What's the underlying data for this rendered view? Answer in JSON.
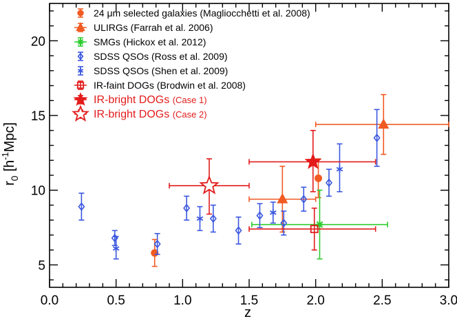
{
  "chart_data": {
    "type": "scatter",
    "title": "",
    "xlabel": "z",
    "ylabel_main": "r",
    "ylabel_sub": "0",
    "ylabel_unit": "[h",
    "ylabel_sup": "-1",
    "ylabel_unit2": "Mpc]",
    "xlim": [
      0.0,
      3.0
    ],
    "ylim": [
      3.5,
      22.5
    ],
    "xticks": [
      0.0,
      0.5,
      1.0,
      1.5,
      2.0,
      2.5,
      3.0
    ],
    "xtick_labels": [
      "0.0",
      "0.5",
      "1.0",
      "1.5",
      "2.0",
      "2.5",
      "3.0"
    ],
    "yticks": [
      5,
      10,
      15,
      20
    ],
    "ytick_labels": [
      "5",
      "10",
      "15",
      "20"
    ],
    "legend_position": "top-left",
    "series": [
      {
        "name": "24 μm selected galaxies",
        "ref": "(Magliocchetti et al. 2008)",
        "color": "#f15a22",
        "marker": "circle",
        "points": [
          {
            "x": 0.79,
            "y": 5.8,
            "ylo": 4.9,
            "yhi": 6.7
          },
          {
            "x": 2.02,
            "y": 10.8,
            "ylo": 9.5,
            "yhi": 12.1
          }
        ]
      },
      {
        "name": "ULIRGs",
        "ref": "(Farrah et al. 2006)",
        "color": "#f15a22",
        "marker": "triangle",
        "points": [
          {
            "x": 1.75,
            "y": 9.4,
            "xlo": 1.5,
            "xhi": 2.0,
            "ylo": 7.2,
            "yhi": 11.6
          },
          {
            "x": 2.51,
            "y": 14.4,
            "xlo": 2.0,
            "xhi": 3.0,
            "ylo": 12.4,
            "yhi": 16.4
          }
        ]
      },
      {
        "name": "SMGs",
        "ref": "(Hickox et al. 2012)",
        "color": "#2ecc2e",
        "marker": "asterisk",
        "points": [
          {
            "x": 2.03,
            "y": 7.7,
            "xlo": 1.52,
            "xhi": 2.54,
            "ylo": 5.4,
            "yhi": 10.0
          }
        ]
      },
      {
        "name": "SDSS QSOs",
        "ref": "(Ross et al. 2009)",
        "color": "#3b57e0",
        "marker": "diamond",
        "points": [
          {
            "x": 0.24,
            "y": 8.9,
            "ylo": 8.0,
            "yhi": 9.8
          },
          {
            "x": 0.49,
            "y": 6.8,
            "ylo": 6.3,
            "yhi": 7.3
          },
          {
            "x": 0.81,
            "y": 6.4,
            "ylo": 5.7,
            "yhi": 7.1
          },
          {
            "x": 1.03,
            "y": 8.8,
            "ylo": 8.0,
            "yhi": 9.6
          },
          {
            "x": 1.23,
            "y": 8.1,
            "ylo": 7.2,
            "yhi": 9.0
          },
          {
            "x": 1.42,
            "y": 7.3,
            "ylo": 6.4,
            "yhi": 8.2
          },
          {
            "x": 1.58,
            "y": 8.3,
            "ylo": 7.5,
            "yhi": 9.1
          },
          {
            "x": 1.76,
            "y": 7.8,
            "ylo": 7.0,
            "yhi": 8.6
          },
          {
            "x": 1.91,
            "y": 9.4,
            "ylo": 8.6,
            "yhi": 10.2
          },
          {
            "x": 2.1,
            "y": 10.5,
            "ylo": 9.6,
            "yhi": 11.4
          },
          {
            "x": 2.46,
            "y": 13.5,
            "ylo": 11.6,
            "yhi": 15.4
          }
        ]
      },
      {
        "name": "SDSS QSOs",
        "ref": "(Shen et al. 2009)",
        "color": "#3b57e0",
        "marker": "star",
        "points": [
          {
            "x": 0.5,
            "y": 6.1,
            "ylo": 5.4,
            "yhi": 6.9
          },
          {
            "x": 1.13,
            "y": 8.1,
            "ylo": 7.3,
            "yhi": 8.9
          },
          {
            "x": 1.68,
            "y": 8.5,
            "ylo": 7.8,
            "yhi": 9.2
          },
          {
            "x": 2.18,
            "y": 11.4,
            "ylo": 9.9,
            "yhi": 13.1
          }
        ]
      },
      {
        "name": "IR-faint DOGs",
        "ref": "(Brodwin et al. 2008)",
        "color": "#e31b1b",
        "marker": "square-open",
        "points": [
          {
            "x": 1.99,
            "y": 7.4,
            "xlo": 1.5,
            "xhi": 2.45,
            "ylo": 6.0,
            "yhi": 8.8
          }
        ]
      },
      {
        "name": "IR-bright DOGs",
        "ref": "(Case 1)",
        "color": "#e31b1b",
        "marker": "star5-filled",
        "points": [
          {
            "x": 1.98,
            "y": 11.9,
            "xlo": 1.5,
            "xhi": 2.45,
            "ylo": 9.9,
            "yhi": 14.0
          }
        ]
      },
      {
        "name": "IR-bright DOGs",
        "ref": "(Case 2)",
        "color": "#e31b1b",
        "marker": "star5-open",
        "points": [
          {
            "x": 1.2,
            "y": 10.3,
            "xlo": 0.9,
            "xhi": 1.5,
            "ylo": 8.4,
            "yhi": 12.1
          }
        ]
      }
    ]
  }
}
